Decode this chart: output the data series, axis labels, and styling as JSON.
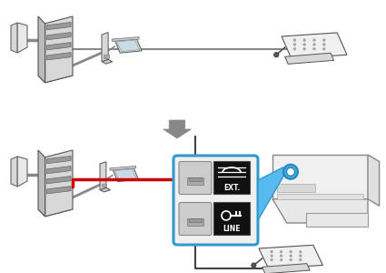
{
  "bg_color": "#ffffff",
  "gray_wire": "#888888",
  "red_wire": "#cc0000",
  "dark_wire": "#444444",
  "blue_border": "#3399cc",
  "blue_fill": "#55bbee",
  "line_bg": "#111111",
  "wall_face": "#e0e0e0",
  "wall_edge": "#666666",
  "modem_face": "#d0d0d0",
  "modem_edge": "#555555",
  "modem_slot": "#999999",
  "comp_body": "#e8e8e8",
  "comp_screen": "#c8dce8",
  "phone_face": "#f0f0f0",
  "phone_edge": "#555555",
  "printer_face": "#f0f0f0",
  "printer_edge": "#888888",
  "port_blue": "#44aadd",
  "arrow_gray": "#888888"
}
